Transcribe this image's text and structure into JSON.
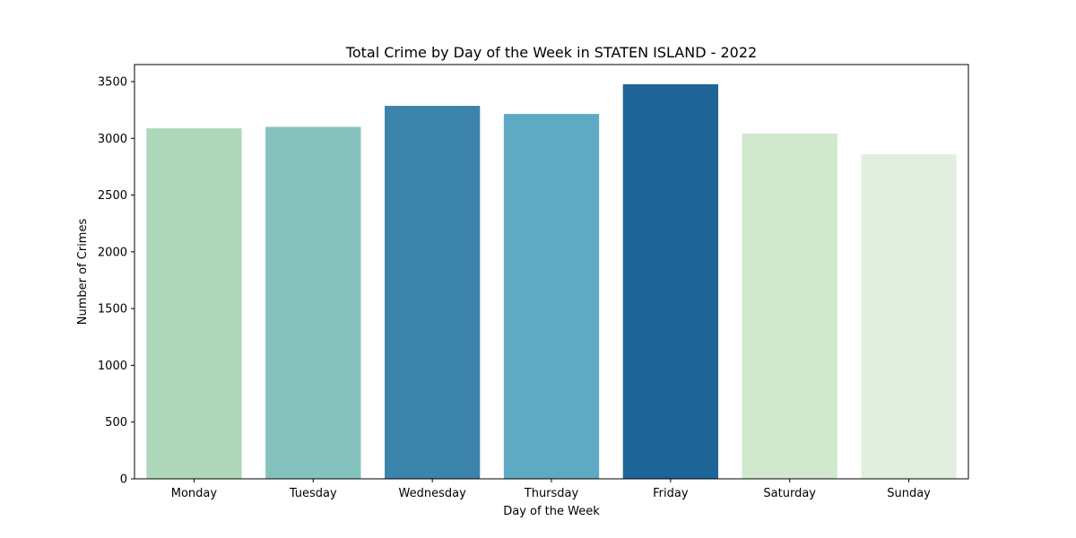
{
  "chart_data": {
    "type": "bar",
    "title": "Total Crime by Day of the Week in STATEN ISLAND - 2022",
    "xlabel": "Day of the Week",
    "ylabel": "Number of Crimes",
    "categories": [
      "Monday",
      "Tuesday",
      "Wednesday",
      "Thursday",
      "Friday",
      "Saturday",
      "Sunday"
    ],
    "values": [
      3088,
      3101,
      3286,
      3215,
      3476,
      3041,
      2859
    ],
    "colors": [
      "#aed8b9",
      "#85c2bd",
      "#3c84ab",
      "#5eaac3",
      "#1e6496",
      "#d0e8cd",
      "#e1f0de"
    ],
    "ylim": [
      0,
      3650
    ],
    "yticks": [
      0,
      500,
      1000,
      1500,
      2000,
      2500,
      3000,
      3500
    ],
    "grid": false,
    "legend": "none"
  }
}
